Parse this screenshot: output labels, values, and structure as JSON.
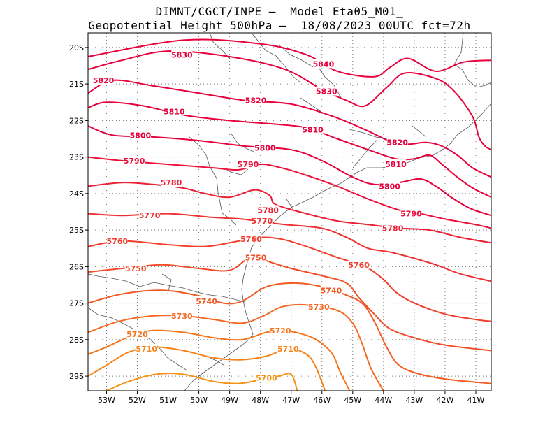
{
  "title": {
    "line1": "DIMNT/CGCT/INPE –  Model Eta05_M01_",
    "line2": "Geopotential Height 500hPa –  18/08/2023 00UTC fct=72h"
  },
  "axes": {
    "lon_labels": [
      "53W",
      "52W",
      "51W",
      "50W",
      "49W",
      "48W",
      "47W",
      "46W",
      "45W",
      "44W",
      "43W",
      "42W",
      "41W"
    ],
    "lat_labels": [
      "20S",
      "21S",
      "22S",
      "23S",
      "24S",
      "25S",
      "26S",
      "27S",
      "28S",
      "29S"
    ]
  },
  "chart_data": {
    "type": "contour",
    "variable": "Geopotential Height 500hPa",
    "lon_range": [
      -53.6,
      -40.5
    ],
    "lat_range": [
      -29.4,
      -19.6
    ],
    "contours": [
      {
        "level": 5840,
        "color": "#e8003c",
        "labels": [
          [
            -45.95,
            -20.45
          ]
        ],
        "points": [
          [
            -53.6,
            -20.25
          ],
          [
            -50.5,
            -19.8
          ],
          [
            -48.0,
            -19.9
          ],
          [
            -46.5,
            -20.2
          ],
          [
            -45.5,
            -20.65
          ],
          [
            -44.3,
            -20.8
          ],
          [
            -43.8,
            -20.55
          ],
          [
            -43.2,
            -20.3
          ],
          [
            -42.3,
            -20.65
          ],
          [
            -41.4,
            -20.4
          ],
          [
            -40.5,
            -20.35
          ]
        ]
      },
      {
        "level": 5830,
        "color": "#e8003c",
        "labels": [
          [
            -50.55,
            -20.2
          ],
          [
            -45.85,
            -21.2
          ]
        ],
        "points": [
          [
            -53.6,
            -20.6
          ],
          [
            -52.5,
            -20.35
          ],
          [
            -51.0,
            -20.1
          ],
          [
            -49.0,
            -20.25
          ],
          [
            -47.2,
            -20.6
          ],
          [
            -46.0,
            -21.15
          ],
          [
            -45.2,
            -21.45
          ],
          [
            -44.6,
            -21.6
          ],
          [
            -43.9,
            -21.1
          ],
          [
            -43.3,
            -20.7
          ],
          [
            -42.3,
            -20.85
          ],
          [
            -41.7,
            -21.2
          ],
          [
            -41.1,
            -21.9
          ],
          [
            -40.9,
            -22.45
          ],
          [
            -40.7,
            -22.7
          ],
          [
            -40.5,
            -22.8
          ]
        ]
      },
      {
        "level": 5820,
        "color": "#e8003c",
        "labels": [
          [
            -53.1,
            -20.9
          ],
          [
            -48.15,
            -21.45
          ],
          [
            -43.55,
            -22.6
          ]
        ],
        "points": [
          [
            -53.6,
            -21.25
          ],
          [
            -52.8,
            -20.9
          ],
          [
            -51.5,
            -21.05
          ],
          [
            -50.0,
            -21.25
          ],
          [
            -48.5,
            -21.45
          ],
          [
            -47.0,
            -21.55
          ],
          [
            -45.6,
            -21.9
          ],
          [
            -44.6,
            -22.25
          ],
          [
            -43.7,
            -22.6
          ],
          [
            -43.2,
            -22.65
          ],
          [
            -42.6,
            -22.6
          ],
          [
            -42.1,
            -22.7
          ],
          [
            -41.6,
            -22.95
          ],
          [
            -41.1,
            -23.3
          ],
          [
            -40.5,
            -23.55
          ]
        ]
      },
      {
        "level": 5810,
        "color": "#e8003c",
        "labels": [
          [
            -50.8,
            -21.75
          ],
          [
            -46.3,
            -22.25
          ],
          [
            -43.6,
            -23.2
          ]
        ],
        "points": [
          [
            -53.6,
            -21.65
          ],
          [
            -53.0,
            -21.5
          ],
          [
            -51.8,
            -21.6
          ],
          [
            -50.5,
            -21.85
          ],
          [
            -49.0,
            -22.0
          ],
          [
            -47.5,
            -22.1
          ],
          [
            -46.5,
            -22.2
          ],
          [
            -45.5,
            -22.5
          ],
          [
            -44.5,
            -22.8
          ],
          [
            -43.6,
            -23.05
          ],
          [
            -43.0,
            -23.05
          ],
          [
            -42.5,
            -22.95
          ],
          [
            -42.1,
            -23.2
          ],
          [
            -41.6,
            -23.55
          ],
          [
            -41.1,
            -23.85
          ],
          [
            -40.5,
            -24.1
          ]
        ]
      },
      {
        "level": 5800,
        "color": "#e8003c",
        "labels": [
          [
            -51.9,
            -22.4
          ],
          [
            -47.85,
            -22.75
          ],
          [
            -43.8,
            -23.8
          ]
        ],
        "points": [
          [
            -53.6,
            -22.15
          ],
          [
            -52.8,
            -22.4
          ],
          [
            -51.5,
            -22.45
          ],
          [
            -50.0,
            -22.55
          ],
          [
            -48.5,
            -22.7
          ],
          [
            -47.0,
            -22.8
          ],
          [
            -46.0,
            -23.1
          ],
          [
            -45.0,
            -23.55
          ],
          [
            -44.3,
            -23.75
          ],
          [
            -43.5,
            -23.7
          ],
          [
            -42.8,
            -23.6
          ],
          [
            -42.3,
            -23.8
          ],
          [
            -41.8,
            -24.1
          ],
          [
            -41.2,
            -24.4
          ],
          [
            -40.5,
            -24.6
          ]
        ]
      },
      {
        "level": 5790,
        "color": "#ea103a",
        "labels": [
          [
            -52.1,
            -23.1
          ],
          [
            -48.4,
            -23.2
          ],
          [
            -43.1,
            -24.55
          ]
        ],
        "points": [
          [
            -53.6,
            -23.0
          ],
          [
            -52.5,
            -23.1
          ],
          [
            -51.0,
            -23.2
          ],
          [
            -49.5,
            -23.3
          ],
          [
            -48.7,
            -23.35
          ],
          [
            -48.0,
            -23.2
          ],
          [
            -47.3,
            -23.3
          ],
          [
            -46.5,
            -23.5
          ],
          [
            -45.5,
            -23.8
          ],
          [
            -44.5,
            -24.15
          ],
          [
            -43.5,
            -24.45
          ],
          [
            -42.8,
            -24.55
          ],
          [
            -42.0,
            -24.7
          ],
          [
            -41.0,
            -24.85
          ],
          [
            -40.5,
            -24.95
          ]
        ]
      },
      {
        "level": 5780,
        "color": "#ec2035",
        "labels": [
          [
            -50.9,
            -23.7
          ],
          [
            -47.75,
            -24.45
          ],
          [
            -43.7,
            -24.95
          ]
        ],
        "points": [
          [
            -53.6,
            -23.8
          ],
          [
            -52.5,
            -23.7
          ],
          [
            -51.5,
            -23.75
          ],
          [
            -50.5,
            -23.85
          ],
          [
            -49.8,
            -24.0
          ],
          [
            -49.0,
            -24.1
          ],
          [
            -48.2,
            -23.9
          ],
          [
            -47.7,
            -24.05
          ],
          [
            -47.5,
            -24.3
          ],
          [
            -46.5,
            -24.55
          ],
          [
            -45.5,
            -24.75
          ],
          [
            -44.5,
            -24.85
          ],
          [
            -43.5,
            -24.95
          ],
          [
            -42.5,
            -25.0
          ],
          [
            -41.5,
            -25.2
          ],
          [
            -40.5,
            -25.35
          ]
        ]
      },
      {
        "level": 5770,
        "color": "#ee3030",
        "labels": [
          [
            -51.6,
            -24.6
          ],
          [
            -47.95,
            -24.75
          ]
        ],
        "points": [
          [
            -53.6,
            -24.55
          ],
          [
            -52.5,
            -24.6
          ],
          [
            -51.0,
            -24.55
          ],
          [
            -49.6,
            -24.65
          ],
          [
            -48.6,
            -24.7
          ],
          [
            -47.7,
            -24.8
          ],
          [
            -47.2,
            -24.85
          ],
          [
            -46.0,
            -24.95
          ],
          [
            -45.2,
            -25.2
          ],
          [
            -44.5,
            -25.5
          ],
          [
            -43.8,
            -25.6
          ],
          [
            -43.1,
            -25.75
          ],
          [
            -42.3,
            -25.95
          ],
          [
            -41.5,
            -26.2
          ],
          [
            -40.5,
            -26.4
          ]
        ]
      },
      {
        "level": 5760,
        "color": "#f03e2c",
        "labels": [
          [
            -52.65,
            -25.3
          ],
          [
            -48.3,
            -25.25
          ],
          [
            -44.8,
            -25.95
          ]
        ],
        "points": [
          [
            -53.6,
            -25.45
          ],
          [
            -52.5,
            -25.3
          ],
          [
            -51.0,
            -25.4
          ],
          [
            -49.8,
            -25.45
          ],
          [
            -48.7,
            -25.3
          ],
          [
            -48.0,
            -25.2
          ],
          [
            -47.3,
            -25.25
          ],
          [
            -46.5,
            -25.45
          ],
          [
            -45.5,
            -25.75
          ],
          [
            -44.6,
            -26.0
          ],
          [
            -44.0,
            -26.35
          ],
          [
            -43.6,
            -26.7
          ],
          [
            -43.0,
            -27.0
          ],
          [
            -42.0,
            -27.3
          ],
          [
            -41.0,
            -27.45
          ],
          [
            -40.5,
            -27.5
          ]
        ]
      },
      {
        "level": 5750,
        "color": "#f24c28",
        "labels": [
          [
            -52.05,
            -26.05
          ],
          [
            -48.15,
            -25.75
          ]
        ],
        "points": [
          [
            -53.6,
            -26.15
          ],
          [
            -52.5,
            -26.05
          ],
          [
            -51.2,
            -25.95
          ],
          [
            -50.0,
            -26.05
          ],
          [
            -49.0,
            -26.1
          ],
          [
            -48.3,
            -25.75
          ],
          [
            -47.6,
            -25.9
          ],
          [
            -47.0,
            -26.05
          ],
          [
            -46.0,
            -26.25
          ],
          [
            -45.2,
            -26.45
          ],
          [
            -44.8,
            -26.85
          ],
          [
            -44.3,
            -27.3
          ],
          [
            -43.8,
            -27.7
          ],
          [
            -43.0,
            -27.95
          ],
          [
            -42.0,
            -28.15
          ],
          [
            -40.5,
            -28.3
          ]
        ]
      },
      {
        "level": 5740,
        "color": "#f25a24",
        "labels": [
          [
            -49.75,
            -26.95
          ],
          [
            -45.7,
            -26.65
          ]
        ],
        "points": [
          [
            -53.6,
            -27.0
          ],
          [
            -52.5,
            -26.75
          ],
          [
            -51.2,
            -26.65
          ],
          [
            -50.0,
            -26.8
          ],
          [
            -49.2,
            -27.0
          ],
          [
            -48.6,
            -26.95
          ],
          [
            -47.8,
            -26.55
          ],
          [
            -46.9,
            -26.45
          ],
          [
            -46.0,
            -26.55
          ],
          [
            -45.3,
            -26.75
          ],
          [
            -44.7,
            -27.0
          ],
          [
            -44.3,
            -27.5
          ],
          [
            -43.9,
            -28.2
          ],
          [
            -43.5,
            -28.7
          ],
          [
            -42.8,
            -28.95
          ],
          [
            -41.8,
            -29.1
          ],
          [
            -40.5,
            -29.2
          ]
        ]
      },
      {
        "level": 5730,
        "color": "#f46820",
        "labels": [
          [
            -50.55,
            -27.35
          ],
          [
            -46.1,
            -27.1
          ]
        ],
        "points": [
          [
            -53.6,
            -27.8
          ],
          [
            -52.6,
            -27.5
          ],
          [
            -51.5,
            -27.35
          ],
          [
            -50.5,
            -27.35
          ],
          [
            -49.5,
            -27.45
          ],
          [
            -48.6,
            -27.55
          ],
          [
            -47.9,
            -27.35
          ],
          [
            -47.3,
            -27.1
          ],
          [
            -46.5,
            -27.05
          ],
          [
            -45.5,
            -27.2
          ],
          [
            -45.0,
            -27.55
          ],
          [
            -44.7,
            -28.1
          ],
          [
            -44.4,
            -28.8
          ],
          [
            -44.0,
            -29.4
          ]
        ]
      },
      {
        "level": 5720,
        "color": "#f4761c",
        "labels": [
          [
            -52.0,
            -27.85
          ],
          [
            -47.35,
            -27.75
          ]
        ],
        "points": [
          [
            -53.6,
            -28.4
          ],
          [
            -53.0,
            -28.2
          ],
          [
            -52.2,
            -27.9
          ],
          [
            -51.5,
            -27.75
          ],
          [
            -50.5,
            -27.8
          ],
          [
            -49.5,
            -27.95
          ],
          [
            -48.6,
            -28.0
          ],
          [
            -47.8,
            -27.8
          ],
          [
            -47.2,
            -27.75
          ],
          [
            -46.3,
            -27.95
          ],
          [
            -45.7,
            -28.35
          ],
          [
            -45.4,
            -28.9
          ],
          [
            -45.1,
            -29.4
          ]
        ]
      },
      {
        "level": 5710,
        "color": "#f68418",
        "labels": [
          [
            -51.7,
            -28.25
          ],
          [
            -47.1,
            -28.25
          ]
        ],
        "points": [
          [
            -53.6,
            -29.0
          ],
          [
            -53.0,
            -28.7
          ],
          [
            -52.3,
            -28.35
          ],
          [
            -51.5,
            -28.2
          ],
          [
            -50.5,
            -28.3
          ],
          [
            -49.5,
            -28.5
          ],
          [
            -48.6,
            -28.55
          ],
          [
            -47.8,
            -28.45
          ],
          [
            -47.1,
            -28.25
          ],
          [
            -46.5,
            -28.4
          ],
          [
            -46.2,
            -28.75
          ],
          [
            -45.9,
            -29.4
          ]
        ]
      },
      {
        "level": 5700,
        "color": "#f69214",
        "labels": [
          [
            -47.8,
            -29.05
          ]
        ],
        "points": [
          [
            -53.0,
            -29.4
          ],
          [
            -52.3,
            -29.15
          ],
          [
            -51.4,
            -28.95
          ],
          [
            -50.5,
            -28.95
          ],
          [
            -49.5,
            -29.15
          ],
          [
            -48.7,
            -29.2
          ],
          [
            -48.0,
            -29.1
          ],
          [
            -47.4,
            -29.0
          ],
          [
            -47.0,
            -28.95
          ],
          [
            -46.8,
            -29.4
          ]
        ]
      }
    ]
  }
}
